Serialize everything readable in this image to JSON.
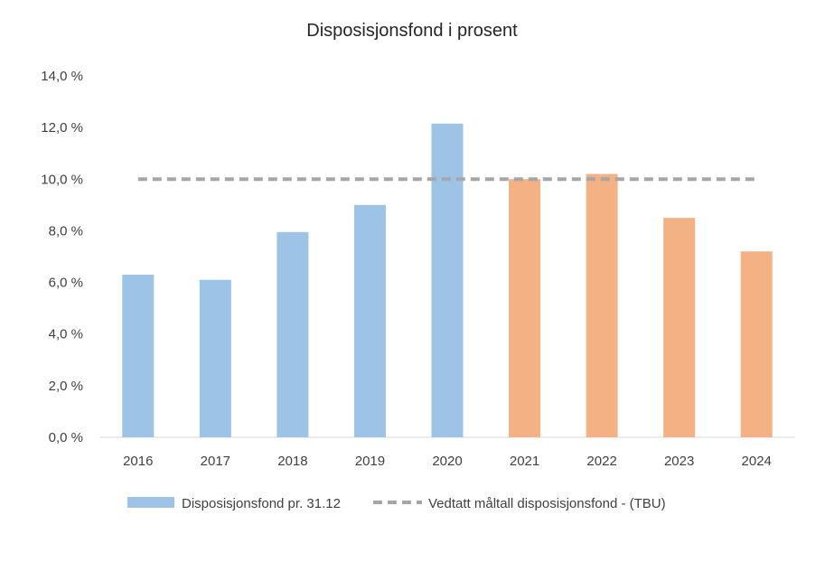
{
  "chart_data": {
    "type": "bar",
    "title": "Disposisjonsfond i prosent",
    "categories": [
      "2016",
      "2017",
      "2018",
      "2019",
      "2020",
      "2021",
      "2022",
      "2023",
      "2024"
    ],
    "series": [
      {
        "name": "Disposisjonsfond pr. 31.12",
        "type": "bar",
        "values": [
          6.3,
          6.1,
          7.95,
          9.0,
          12.15,
          10.0,
          10.2,
          8.5,
          7.2
        ],
        "colors": [
          "#9dc3e6",
          "#9dc3e6",
          "#9dc3e6",
          "#9dc3e6",
          "#9dc3e6",
          "#f4b183",
          "#f4b183",
          "#f4b183",
          "#f4b183"
        ]
      },
      {
        "name": "Vedtatt måltall disposisjonsfond - (TBU)",
        "type": "line",
        "style": "dashed",
        "color": "#a6a6a6",
        "values": [
          10,
          10,
          10,
          10,
          10,
          10,
          10,
          10,
          10
        ]
      }
    ],
    "ylim": [
      0,
      14
    ],
    "yticks": [
      "0,0 %",
      "2,0 %",
      "4,0 %",
      "6,0 %",
      "8,0 %",
      "10,0 %",
      "12,0 %",
      "14,0 %"
    ],
    "grid": false,
    "legend_position": "bottom"
  }
}
